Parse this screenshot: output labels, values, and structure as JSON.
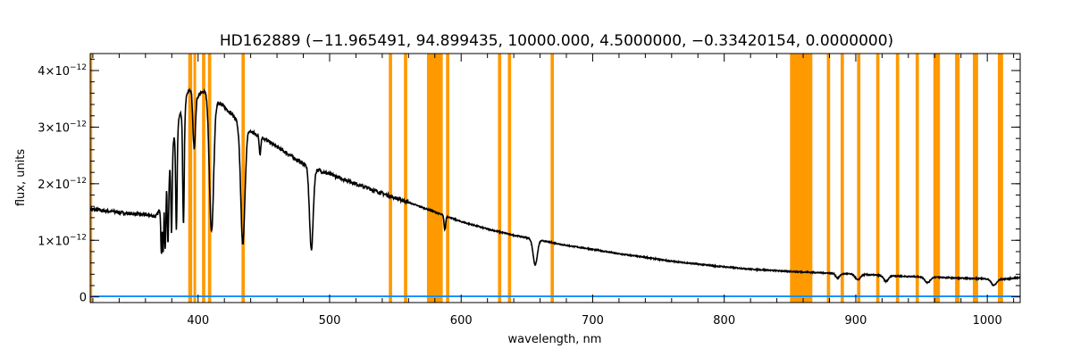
{
  "chart_data": {
    "type": "line",
    "title": "HD162889   (−11.965491, 94.899435, 10000.000, 4.5000000, −0.33420154, 0.0000000)",
    "xlabel": "wavelength, nm",
    "ylabel": "flux, units",
    "xlim": [
      318,
      1025
    ],
    "ylim": [
      -1e-13,
      4.3e-12
    ],
    "grid": false,
    "x_ticks": [
      {
        "value": 400,
        "label": "400"
      },
      {
        "value": 500,
        "label": "500"
      },
      {
        "value": 600,
        "label": "600"
      },
      {
        "value": 700,
        "label": "700"
      },
      {
        "value": 800,
        "label": "800"
      },
      {
        "value": 900,
        "label": "900"
      },
      {
        "value": 1000,
        "label": "1000"
      }
    ],
    "y_ticks": [
      {
        "value": 0,
        "label": "0",
        "exp": ""
      },
      {
        "value": 1e-12,
        "label": "1×10",
        "exp": "−12"
      },
      {
        "value": 2e-12,
        "label": "2×10",
        "exp": "−12"
      },
      {
        "value": 3e-12,
        "label": "3×10",
        "exp": "−12"
      },
      {
        "value": 4e-12,
        "label": "4×10",
        "exp": "−12"
      }
    ],
    "colors": {
      "spectrum": "#000000",
      "masks": "#ff9900",
      "error": "#1e90ff",
      "axes": "#000000"
    },
    "masked_regions": [
      [
        318,
        319.5
      ],
      [
        392.5,
        395.5
      ],
      [
        396.5,
        398.5
      ],
      [
        403,
        405.5
      ],
      [
        407.5,
        410
      ],
      [
        433,
        435.5
      ],
      [
        545,
        547.5
      ],
      [
        556.5,
        559
      ],
      [
        574,
        586
      ],
      [
        588.5,
        591
      ],
      [
        628,
        630.5
      ],
      [
        635.5,
        638
      ],
      [
        668,
        670.5
      ],
      [
        850,
        867
      ],
      [
        878,
        880.5
      ],
      [
        888.5,
        891
      ],
      [
        901,
        903.5
      ],
      [
        915.5,
        918
      ],
      [
        930.5,
        933
      ],
      [
        945.5,
        948
      ],
      [
        959,
        964
      ],
      [
        975.5,
        979
      ],
      [
        989,
        993
      ],
      [
        1008,
        1012
      ]
    ],
    "series": [
      {
        "role": "spectrum",
        "x": [
          318,
          330,
          345,
          360,
          368,
          372,
          375,
          378,
          380,
          383,
          386,
          389,
          392,
          395,
          400,
          405,
          410,
          415,
          420,
          425,
          430,
          440,
          450,
          460,
          470,
          480,
          490,
          500,
          520,
          540,
          560,
          580,
          600,
          620,
          640,
          660,
          680,
          700,
          720,
          740,
          760,
          780,
          800,
          820,
          850,
          860,
          870,
          880,
          890,
          900,
          920,
          940,
          960,
          980,
          1000,
          1010,
          1025
        ],
        "y": [
          1.55e-12,
          1.52e-12,
          1.48e-12,
          1.45e-12,
          1.42e-12,
          1.6e-12,
          1.9e-12,
          2.2e-12,
          2.6e-12,
          3e-12,
          3.2e-12,
          3.45e-12,
          3.6e-12,
          3.7e-12,
          3.55e-12,
          3.65e-12,
          3.55e-12,
          3.45e-12,
          3.35e-12,
          3.25e-12,
          3.1e-12,
          2.92e-12,
          2.8e-12,
          2.65e-12,
          2.5e-12,
          2.35e-12,
          2.25e-12,
          2.17e-12,
          2e-12,
          1.83e-12,
          1.67e-12,
          1.5e-12,
          1.33e-12,
          1.2e-12,
          1.09e-12,
          1e-12,
          9.1e-13,
          8.4e-13,
          7.6e-13,
          7e-13,
          6.3e-13,
          5.8e-13,
          5.3e-13,
          4.9e-13,
          4.5e-13,
          4.4e-13,
          4.3e-13,
          4.2e-13,
          4.1e-13,
          4e-13,
          3.8e-13,
          3.6e-13,
          3.5e-13,
          3.3e-13,
          3.2e-13,
          3.1e-13,
          3.4e-13
        ]
      },
      {
        "role": "error",
        "x": [
          318,
          1025
        ],
        "y": [
          1e-14,
          1e-14
        ]
      }
    ],
    "absorption_lines": [
      {
        "x": 383.5,
        "depth": 4.2e-13,
        "width": 0.8
      },
      {
        "x": 388.9,
        "depth": 6.5e-13,
        "width": 0.9
      },
      {
        "x": 397.0,
        "depth": 1e-12,
        "width": 1.0
      },
      {
        "x": 410.2,
        "depth": 2.4e-12,
        "width": 1.6
      },
      {
        "x": 434.0,
        "depth": 2.1e-12,
        "width": 1.6
      },
      {
        "x": 447.1,
        "depth": 3e-13,
        "width": 0.6
      },
      {
        "x": 486.1,
        "depth": 1.45e-12,
        "width": 1.4
      },
      {
        "x": 587.6,
        "depth": 2.5e-13,
        "width": 0.6
      },
      {
        "x": 656.3,
        "depth": 4.5e-13,
        "width": 1.6
      },
      {
        "x": 886.3,
        "depth": 8e-14,
        "width": 1.5
      },
      {
        "x": 901.5,
        "depth": 1e-13,
        "width": 1.8
      },
      {
        "x": 923.0,
        "depth": 1e-13,
        "width": 1.8
      },
      {
        "x": 954.6,
        "depth": 1e-13,
        "width": 2.0
      },
      {
        "x": 1005.0,
        "depth": 1.1e-13,
        "width": 2.0
      }
    ],
    "balmer_region": {
      "start": 370,
      "end": 392,
      "lines": [
        372.2,
        373.4,
        375.0,
        377.1,
        379.8,
        383.5,
        388.9
      ],
      "depth_frac": 0.55
    }
  }
}
